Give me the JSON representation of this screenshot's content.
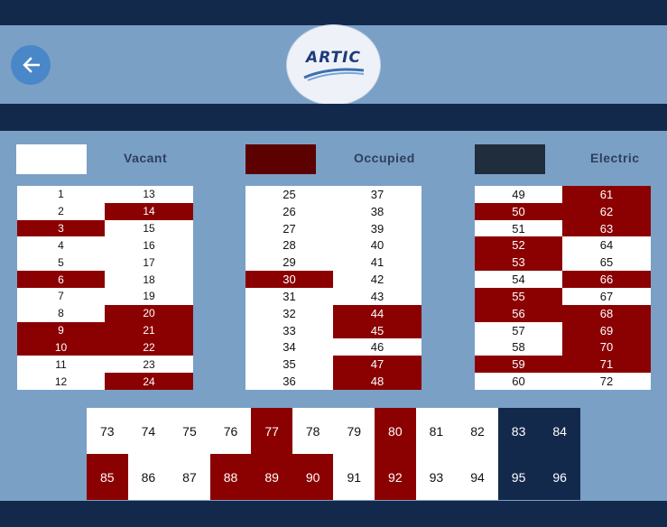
{
  "header": {
    "logo_text": "ARTIC",
    "back_icon": "arrow-left-icon"
  },
  "legend": [
    {
      "label": "Vacant",
      "color": "#ffffff"
    },
    {
      "label": "Occupied",
      "color": "#5c0000"
    },
    {
      "label": "Electric",
      "color": "#1f2d3d"
    }
  ],
  "colors": {
    "vacant": "#ffffff",
    "occupied": "#8b0000",
    "electric": "#13294b"
  },
  "grids": [
    {
      "cells": [
        {
          "n": "1",
          "s": "vacant"
        },
        {
          "n": "2",
          "s": "vacant"
        },
        {
          "n": "3",
          "s": "occupied"
        },
        {
          "n": "4",
          "s": "vacant"
        },
        {
          "n": "5",
          "s": "vacant"
        },
        {
          "n": "6",
          "s": "occupied"
        },
        {
          "n": "7",
          "s": "vacant"
        },
        {
          "n": "8",
          "s": "vacant"
        },
        {
          "n": "9",
          "s": "occupied"
        },
        {
          "n": "10",
          "s": "occupied"
        },
        {
          "n": "11",
          "s": "vacant"
        },
        {
          "n": "12",
          "s": "vacant"
        },
        {
          "n": "13",
          "s": "vacant"
        },
        {
          "n": "14",
          "s": "occupied"
        },
        {
          "n": "15",
          "s": "vacant"
        },
        {
          "n": "16",
          "s": "vacant"
        },
        {
          "n": "17",
          "s": "vacant"
        },
        {
          "n": "18",
          "s": "vacant"
        },
        {
          "n": "19",
          "s": "vacant"
        },
        {
          "n": "20",
          "s": "occupied"
        },
        {
          "n": "21",
          "s": "occupied"
        },
        {
          "n": "22",
          "s": "occupied"
        },
        {
          "n": "23",
          "s": "vacant"
        },
        {
          "n": "24",
          "s": "occupied"
        }
      ]
    },
    {
      "cells": [
        {
          "n": "25",
          "s": "vacant"
        },
        {
          "n": "26",
          "s": "vacant"
        },
        {
          "n": "27",
          "s": "vacant"
        },
        {
          "n": "28",
          "s": "vacant"
        },
        {
          "n": "29",
          "s": "vacant"
        },
        {
          "n": "30",
          "s": "occupied"
        },
        {
          "n": "31",
          "s": "vacant"
        },
        {
          "n": "32",
          "s": "vacant"
        },
        {
          "n": "33",
          "s": "vacant"
        },
        {
          "n": "34",
          "s": "vacant"
        },
        {
          "n": "35",
          "s": "vacant"
        },
        {
          "n": "36",
          "s": "vacant"
        },
        {
          "n": "37",
          "s": "vacant"
        },
        {
          "n": "38",
          "s": "vacant"
        },
        {
          "n": "39",
          "s": "vacant"
        },
        {
          "n": "40",
          "s": "vacant"
        },
        {
          "n": "41",
          "s": "vacant"
        },
        {
          "n": "42",
          "s": "vacant"
        },
        {
          "n": "43",
          "s": "vacant"
        },
        {
          "n": "44",
          "s": "occupied"
        },
        {
          "n": "45",
          "s": "occupied"
        },
        {
          "n": "46",
          "s": "vacant"
        },
        {
          "n": "47",
          "s": "occupied"
        },
        {
          "n": "48",
          "s": "occupied"
        }
      ]
    },
    {
      "cells": [
        {
          "n": "49",
          "s": "vacant"
        },
        {
          "n": "50",
          "s": "occupied"
        },
        {
          "n": "51",
          "s": "vacant"
        },
        {
          "n": "52",
          "s": "occupied"
        },
        {
          "n": "53",
          "s": "occupied"
        },
        {
          "n": "54",
          "s": "vacant"
        },
        {
          "n": "55",
          "s": "occupied"
        },
        {
          "n": "56",
          "s": "occupied"
        },
        {
          "n": "57",
          "s": "vacant"
        },
        {
          "n": "58",
          "s": "vacant"
        },
        {
          "n": "59",
          "s": "occupied"
        },
        {
          "n": "60",
          "s": "vacant"
        },
        {
          "n": "61",
          "s": "occupied"
        },
        {
          "n": "62",
          "s": "occupied"
        },
        {
          "n": "63",
          "s": "occupied"
        },
        {
          "n": "64",
          "s": "vacant"
        },
        {
          "n": "65",
          "s": "vacant"
        },
        {
          "n": "66",
          "s": "occupied"
        },
        {
          "n": "67",
          "s": "vacant"
        },
        {
          "n": "68",
          "s": "occupied"
        },
        {
          "n": "69",
          "s": "occupied"
        },
        {
          "n": "70",
          "s": "occupied"
        },
        {
          "n": "71",
          "s": "occupied"
        },
        {
          "n": "72",
          "s": "vacant"
        }
      ]
    }
  ],
  "bottom_row1": [
    {
      "n": "73",
      "s": "vacant"
    },
    {
      "n": "74",
      "s": "vacant"
    },
    {
      "n": "75",
      "s": "vacant"
    },
    {
      "n": "76",
      "s": "vacant"
    },
    {
      "n": "77",
      "s": "occupied"
    },
    {
      "n": "78",
      "s": "vacant"
    },
    {
      "n": "79",
      "s": "vacant"
    },
    {
      "n": "80",
      "s": "occupied"
    },
    {
      "n": "81",
      "s": "vacant"
    },
    {
      "n": "82",
      "s": "vacant"
    },
    {
      "n": "83",
      "s": "electric"
    },
    {
      "n": "84",
      "s": "electric"
    }
  ],
  "bottom_row2": [
    {
      "n": "85",
      "s": "occupied"
    },
    {
      "n": "86",
      "s": "vacant"
    },
    {
      "n": "87",
      "s": "vacant"
    },
    {
      "n": "88",
      "s": "occupied"
    },
    {
      "n": "89",
      "s": "occupied"
    },
    {
      "n": "90",
      "s": "occupied"
    },
    {
      "n": "91",
      "s": "vacant"
    },
    {
      "n": "92",
      "s": "occupied"
    },
    {
      "n": "93",
      "s": "vacant"
    },
    {
      "n": "94",
      "s": "vacant"
    },
    {
      "n": "95",
      "s": "electric"
    },
    {
      "n": "96",
      "s": "electric"
    }
  ]
}
